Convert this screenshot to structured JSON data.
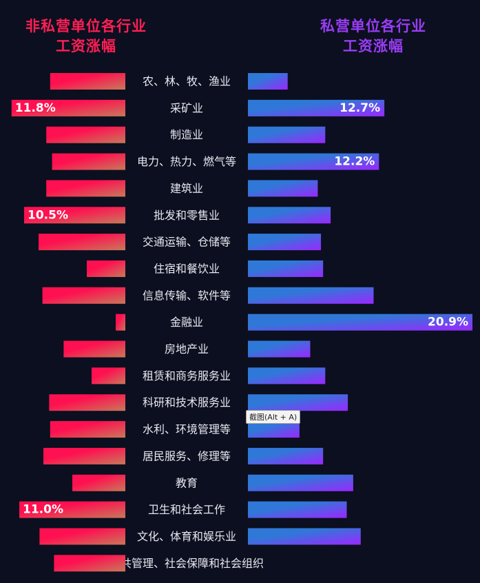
{
  "titles": {
    "left": [
      "非私营单位各行业",
      "工资涨幅"
    ],
    "right": [
      "私营单位各行业",
      "工资涨幅"
    ]
  },
  "tooltip": "截图(Alt + A)",
  "colors": {
    "left_start": "#ff1050",
    "left_end": "#c8785a",
    "right_start": "#3078d8",
    "right_end": "#9a28ff",
    "left_title": "#ff1f55",
    "right_title": "#9a3cf5"
  },
  "chart_data": {
    "type": "bar",
    "layout": "butterfly",
    "categories": [
      "农、林、牧、渔业",
      "采矿业",
      "制造业",
      "电力、热力、燃气等",
      "建筑业",
      "批发和零售业",
      "交通运输、仓储等",
      "住宿和餐饮业",
      "信息传输、软件等",
      "金融业",
      "房地产业",
      "租赁和商务服务业",
      "科研和技术服务业",
      "水利、环境管理等",
      "居民服务、修理等",
      "教育",
      "卫生和社会工作",
      "文化、体育和娱乐业",
      "公共管理、社会保障和社会组织"
    ],
    "series": [
      {
        "name": "非私营单位各行业工资涨幅",
        "values": [
          7.8,
          11.8,
          8.2,
          7.6,
          8.2,
          10.5,
          9.0,
          4.0,
          8.6,
          1.0,
          6.4,
          3.5,
          7.9,
          7.8,
          8.5,
          5.5,
          11.0,
          8.9,
          7.4
        ],
        "labels": [
          "",
          "11.8%",
          "",
          "",
          "",
          "10.5%",
          "",
          "",
          "",
          "",
          "",
          "",
          "",
          "",
          "",
          "",
          "11.0%",
          "",
          ""
        ]
      },
      {
        "name": "私营单位各行业工资涨幅",
        "values": [
          3.7,
          12.7,
          7.2,
          12.2,
          6.5,
          7.7,
          6.8,
          7.0,
          11.7,
          20.9,
          5.8,
          7.2,
          9.3,
          4.8,
          7.0,
          9.8,
          9.2,
          10.5,
          0
        ],
        "labels": [
          "",
          "12.7%",
          "",
          "12.2%",
          "",
          "",
          "",
          "",
          "",
          "20.9%",
          "",
          "",
          "",
          "",
          "",
          "",
          "",
          "",
          ""
        ]
      }
    ]
  }
}
